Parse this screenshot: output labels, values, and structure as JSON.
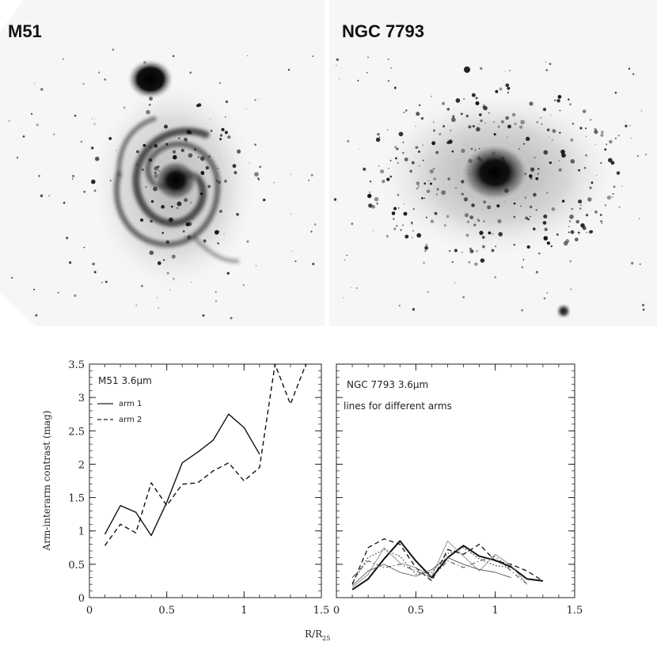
{
  "images": {
    "left": {
      "label": "M51"
    },
    "right": {
      "label": "NGC 7793"
    }
  },
  "chart_data": [
    {
      "type": "line",
      "annotation": "M51 3.6µm",
      "ylabel": "Arm-interarm contrast (mag)",
      "xlim": [
        0,
        1.5
      ],
      "ylim": [
        0,
        3.5
      ],
      "xticks": [
        "0",
        "0.5",
        "1",
        "1.5"
      ],
      "yticks": [
        "0",
        "0.5",
        "1",
        "1.5",
        "2",
        "2.5",
        "3",
        "3.5"
      ],
      "legend_position": "upper-left",
      "series": [
        {
          "name": "arm 1",
          "style": "solid",
          "x": [
            0.1,
            0.2,
            0.3,
            0.4,
            0.5,
            0.6,
            0.7,
            0.8,
            0.9,
            1.0,
            1.1
          ],
          "y": [
            0.95,
            1.38,
            1.28,
            0.93,
            1.43,
            2.02,
            2.18,
            2.36,
            2.75,
            2.55,
            2.15
          ]
        },
        {
          "name": "arm 2",
          "style": "dashed",
          "x": [
            0.1,
            0.2,
            0.3,
            0.4,
            0.5,
            0.6,
            0.7,
            0.8,
            0.9,
            1.0,
            1.1,
            1.2,
            1.3,
            1.4
          ],
          "y": [
            0.78,
            1.1,
            0.97,
            1.72,
            1.38,
            1.7,
            1.72,
            1.9,
            2.02,
            1.75,
            1.95,
            3.5,
            2.9,
            3.5
          ]
        }
      ]
    },
    {
      "type": "line",
      "annotation": "NGC 7793 3.6µm",
      "annotation2": "lines for different arms",
      "xlabel": "R/R",
      "xlabel_sub": "25",
      "xlim": [
        0,
        1.5
      ],
      "ylim": [
        0,
        3.5
      ],
      "xticks": [
        "0",
        "0.5",
        "1",
        "1.5"
      ],
      "series": [
        {
          "style": "solid",
          "width": 2.0,
          "color": "#111111",
          "x": [
            0.1,
            0.2,
            0.3,
            0.4,
            0.5,
            0.6,
            0.7,
            0.8,
            0.9,
            1.0,
            1.1,
            1.2,
            1.3
          ],
          "y": [
            0.12,
            0.28,
            0.58,
            0.85,
            0.55,
            0.3,
            0.6,
            0.78,
            0.62,
            0.56,
            0.46,
            0.28,
            0.25
          ]
        },
        {
          "style": "dashed",
          "width": 1.3,
          "color": "#111111",
          "x": [
            0.1,
            0.2,
            0.3,
            0.4,
            0.5,
            0.6,
            0.7,
            0.8,
            0.9,
            1.0,
            1.1,
            1.2,
            1.3
          ],
          "y": [
            0.2,
            0.75,
            0.88,
            0.8,
            0.45,
            0.25,
            0.72,
            0.65,
            0.8,
            0.55,
            0.5,
            0.4,
            0.25
          ]
        },
        {
          "style": "dotted",
          "width": 1.2,
          "color": "#333333",
          "x": [
            0.1,
            0.2,
            0.3,
            0.4,
            0.5,
            0.6,
            0.7,
            0.8,
            0.9,
            1.0,
            1.1
          ],
          "y": [
            0.22,
            0.6,
            0.72,
            0.62,
            0.35,
            0.38,
            0.66,
            0.75,
            0.58,
            0.48,
            0.45
          ]
        },
        {
          "style": "dashdot",
          "width": 1.0,
          "color": "#444444",
          "x": [
            0.1,
            0.2,
            0.3,
            0.4,
            0.5,
            0.6,
            0.7,
            0.8,
            0.9,
            1.0,
            1.1,
            1.2
          ],
          "y": [
            0.3,
            0.55,
            0.45,
            0.5,
            0.4,
            0.3,
            0.55,
            0.45,
            0.55,
            0.62,
            0.4,
            0.2
          ]
        },
        {
          "style": "solid",
          "width": 0.9,
          "color": "#888888",
          "x": [
            0.1,
            0.2,
            0.3,
            0.4,
            0.5,
            0.6,
            0.7,
            0.8,
            0.9,
            1.0,
            1.1,
            1.2
          ],
          "y": [
            0.15,
            0.35,
            0.75,
            0.52,
            0.45,
            0.32,
            0.85,
            0.62,
            0.4,
            0.65,
            0.48,
            0.2
          ]
        },
        {
          "style": "solid",
          "width": 0.9,
          "color": "#555555",
          "x": [
            0.1,
            0.2,
            0.3,
            0.4,
            0.5,
            0.6,
            0.7,
            0.8,
            0.9,
            1.0,
            1.1
          ],
          "y": [
            0.18,
            0.4,
            0.5,
            0.38,
            0.32,
            0.42,
            0.6,
            0.5,
            0.42,
            0.38,
            0.3
          ]
        }
      ]
    }
  ]
}
